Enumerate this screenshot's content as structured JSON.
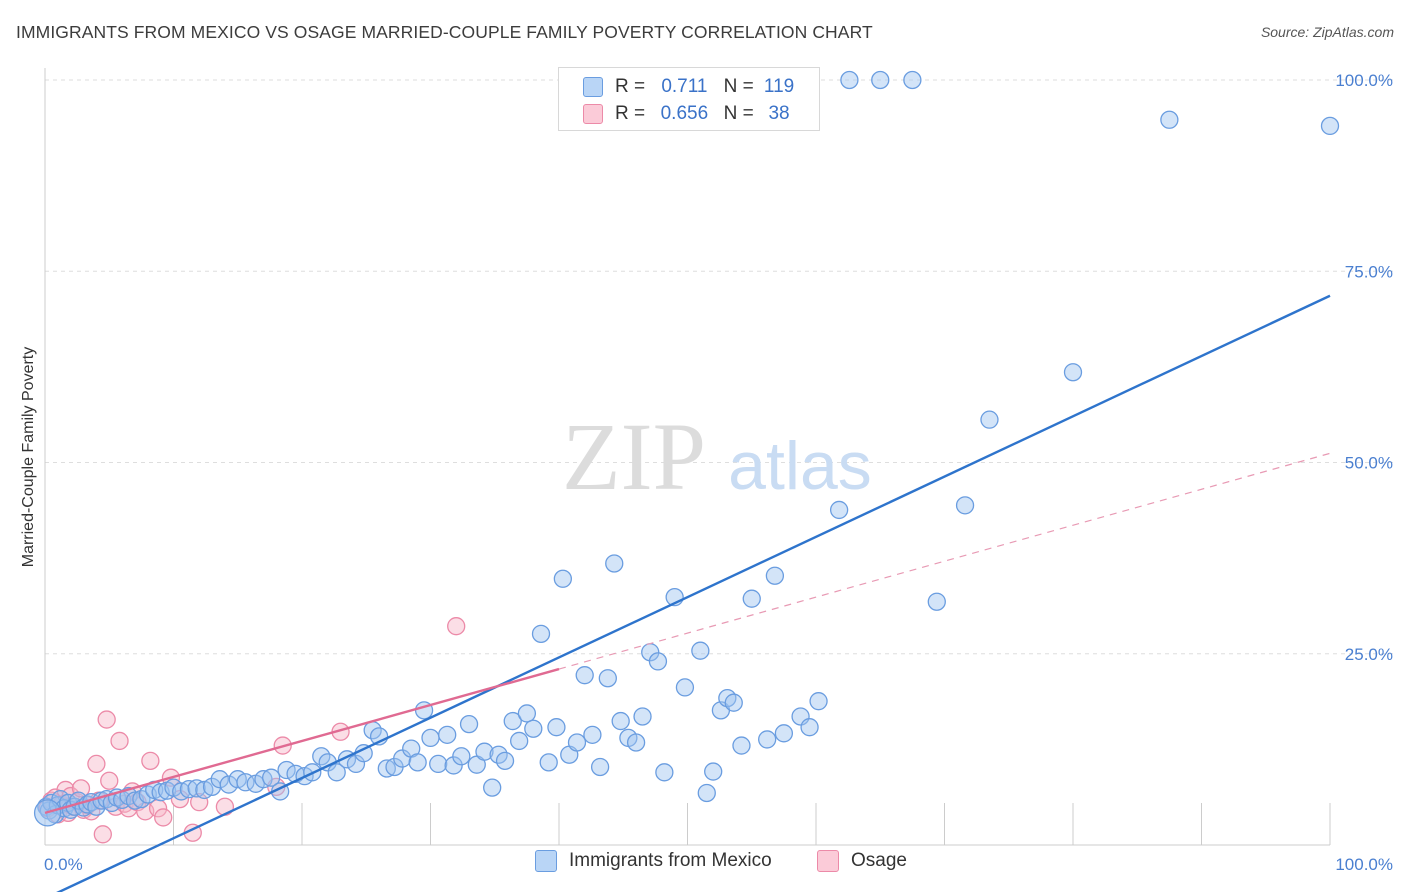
{
  "title": "IMMIGRANTS FROM MEXICO VS OSAGE MARRIED-COUPLE FAMILY POVERTY CORRELATION CHART",
  "source": "Source: ZipAtlas.com",
  "watermark": {
    "zip": "ZIP",
    "atlas": "atlas"
  },
  "legend": {
    "rows": [
      {
        "r_label": "R =",
        "r_value": "0.711",
        "n_label": "N =",
        "n_value": "119",
        "color": "#9dc3f0",
        "border": "#6a9de0"
      },
      {
        "r_label": "R =",
        "r_value": "0.656",
        "n_label": "N =",
        "n_value": "38",
        "color": "#f7b5c8",
        "border": "#ec8aa8"
      }
    ]
  },
  "bottom_legend": [
    {
      "label": "Immigrants from Mexico",
      "color": "#b9d5f6",
      "border": "#6a9de0"
    },
    {
      "label": "Osage",
      "color": "#fbcbd8",
      "border": "#ec8aa8"
    }
  ],
  "chart_data": {
    "type": "scatter",
    "title": "IMMIGRANTS FROM MEXICO VS OSAGE MARRIED-COUPLE FAMILY POVERTY CORRELATION CHART",
    "xlabel": "",
    "ylabel": "Married-Couple Family Poverty",
    "xlim": [
      0,
      100
    ],
    "ylim": [
      0,
      100
    ],
    "x_tick_labels": [
      "0.0%",
      "100.0%"
    ],
    "y_tick_labels": [
      "25.0%",
      "50.0%",
      "75.0%",
      "100.0%"
    ],
    "y_ticks": [
      25,
      50,
      75,
      100
    ],
    "grid": true,
    "legend_position": "top-center",
    "series": [
      {
        "name": "Immigrants from Mexico",
        "color": "#6a9de0",
        "fill": "rgba(157,195,240,0.45)",
        "trend": {
          "x": [
            0,
            100
          ],
          "y": [
            -7,
            71.8
          ],
          "color": "#2e74cc",
          "dashed": false
        },
        "points": [
          [
            0.1,
            5.0
          ],
          [
            0.3,
            4.5
          ],
          [
            0.5,
            5.5
          ],
          [
            0.8,
            4.0
          ],
          [
            1.0,
            5.2
          ],
          [
            1.2,
            6.0
          ],
          [
            1.5,
            4.8
          ],
          [
            1.8,
            5.5
          ],
          [
            2.0,
            4.6
          ],
          [
            2.3,
            5.0
          ],
          [
            2.6,
            5.8
          ],
          [
            3.0,
            4.9
          ],
          [
            3.3,
            5.3
          ],
          [
            3.6,
            5.6
          ],
          [
            4.0,
            5.0
          ],
          [
            4.4,
            5.8
          ],
          [
            4.8,
            6.0
          ],
          [
            5.2,
            5.5
          ],
          [
            5.6,
            6.2
          ],
          [
            6.0,
            5.9
          ],
          [
            6.5,
            6.4
          ],
          [
            7.0,
            5.8
          ],
          [
            7.5,
            6.0
          ],
          [
            8.0,
            6.6
          ],
          [
            8.5,
            7.2
          ],
          [
            9.0,
            6.9
          ],
          [
            9.5,
            7.1
          ],
          [
            10.0,
            7.5
          ],
          [
            10.6,
            7.0
          ],
          [
            11.2,
            7.3
          ],
          [
            11.8,
            7.4
          ],
          [
            12.4,
            7.2
          ],
          [
            13.0,
            7.6
          ],
          [
            13.6,
            8.6
          ],
          [
            14.3,
            7.9
          ],
          [
            15.0,
            8.6
          ],
          [
            15.6,
            8.2
          ],
          [
            16.4,
            8.0
          ],
          [
            17.0,
            8.6
          ],
          [
            17.6,
            8.8
          ],
          [
            18.3,
            7.0
          ],
          [
            18.8,
            9.8
          ],
          [
            19.5,
            9.3
          ],
          [
            20.2,
            9.0
          ],
          [
            20.8,
            9.5
          ],
          [
            21.5,
            11.6
          ],
          [
            22.0,
            10.8
          ],
          [
            22.7,
            9.5
          ],
          [
            23.5,
            11.2
          ],
          [
            24.2,
            10.6
          ],
          [
            24.8,
            12.0
          ],
          [
            25.5,
            15.0
          ],
          [
            26.0,
            14.2
          ],
          [
            26.6,
            10.0
          ],
          [
            27.2,
            10.2
          ],
          [
            27.8,
            11.3
          ],
          [
            28.5,
            12.6
          ],
          [
            29.0,
            10.8
          ],
          [
            29.5,
            17.6
          ],
          [
            30.0,
            14.0
          ],
          [
            30.6,
            10.6
          ],
          [
            31.3,
            14.4
          ],
          [
            31.8,
            10.4
          ],
          [
            32.4,
            11.6
          ],
          [
            33.0,
            15.8
          ],
          [
            33.6,
            10.5
          ],
          [
            34.2,
            12.2
          ],
          [
            34.8,
            7.5
          ],
          [
            35.3,
            11.8
          ],
          [
            35.8,
            11.0
          ],
          [
            36.4,
            16.2
          ],
          [
            36.9,
            13.6
          ],
          [
            37.5,
            17.2
          ],
          [
            38.0,
            15.2
          ],
          [
            38.6,
            27.6
          ],
          [
            39.2,
            10.8
          ],
          [
            39.8,
            15.4
          ],
          [
            40.3,
            34.8
          ],
          [
            40.8,
            11.8
          ],
          [
            41.4,
            13.4
          ],
          [
            42.0,
            22.2
          ],
          [
            42.6,
            14.4
          ],
          [
            43.2,
            10.2
          ],
          [
            43.8,
            21.8
          ],
          [
            44.3,
            36.8
          ],
          [
            44.8,
            16.2
          ],
          [
            45.4,
            14.0
          ],
          [
            46.0,
            13.4
          ],
          [
            46.5,
            16.8
          ],
          [
            47.1,
            25.2
          ],
          [
            47.7,
            24.0
          ],
          [
            48.2,
            9.5
          ],
          [
            49.0,
            32.4
          ],
          [
            49.8,
            20.6
          ],
          [
            51.0,
            25.4
          ],
          [
            51.5,
            6.8
          ],
          [
            52.0,
            9.6
          ],
          [
            52.6,
            17.6
          ],
          [
            53.1,
            19.2
          ],
          [
            53.6,
            18.6
          ],
          [
            54.2,
            13.0
          ],
          [
            55.0,
            32.2
          ],
          [
            56.2,
            13.8
          ],
          [
            56.8,
            35.2
          ],
          [
            57.5,
            14.6
          ],
          [
            58.8,
            16.8
          ],
          [
            59.5,
            15.4
          ],
          [
            60.2,
            18.8
          ],
          [
            61.8,
            43.8
          ],
          [
            62.6,
            100
          ],
          [
            65.0,
            100
          ],
          [
            67.5,
            100
          ],
          [
            69.4,
            31.8
          ],
          [
            71.6,
            44.4
          ],
          [
            73.5,
            55.6
          ],
          [
            80.0,
            61.8
          ],
          [
            87.5,
            94.8
          ],
          [
            100,
            94.0
          ]
        ]
      },
      {
        "name": "Osage",
        "color": "#ec8aa8",
        "fill": "rgba(247,181,200,0.45)",
        "trend": {
          "x": [
            0,
            40
          ],
          "y": [
            4.2,
            23.0
          ],
          "color": "#e06a92",
          "dashed": false
        },
        "trend_ext": {
          "x": [
            40,
            100
          ],
          "y": [
            23.0,
            51.2
          ],
          "color": "#e89ab4",
          "dashed": true
        },
        "points": [
          [
            0.2,
            4.8
          ],
          [
            0.5,
            5.8
          ],
          [
            0.8,
            6.2
          ],
          [
            1.0,
            4.0
          ],
          [
            1.3,
            5.3
          ],
          [
            1.6,
            7.2
          ],
          [
            1.8,
            4.2
          ],
          [
            2.0,
            6.4
          ],
          [
            2.2,
            5.0
          ],
          [
            2.5,
            5.6
          ],
          [
            2.8,
            7.4
          ],
          [
            3.0,
            4.6
          ],
          [
            3.3,
            5.2
          ],
          [
            3.6,
            4.4
          ],
          [
            4.0,
            10.6
          ],
          [
            4.2,
            5.8
          ],
          [
            4.5,
            1.4
          ],
          [
            4.8,
            16.4
          ],
          [
            5.0,
            8.4
          ],
          [
            5.5,
            5.0
          ],
          [
            5.8,
            13.6
          ],
          [
            6.2,
            5.4
          ],
          [
            6.5,
            4.8
          ],
          [
            6.8,
            7.0
          ],
          [
            7.2,
            5.6
          ],
          [
            7.8,
            4.4
          ],
          [
            8.2,
            11.0
          ],
          [
            8.8,
            4.8
          ],
          [
            9.2,
            3.6
          ],
          [
            9.8,
            8.8
          ],
          [
            10.5,
            6.0
          ],
          [
            11.5,
            1.6
          ],
          [
            12.0,
            5.6
          ],
          [
            14.0,
            5.0
          ],
          [
            18.0,
            7.6
          ],
          [
            18.5,
            13.0
          ],
          [
            23.0,
            14.8
          ],
          [
            32.0,
            28.6
          ]
        ]
      }
    ]
  }
}
